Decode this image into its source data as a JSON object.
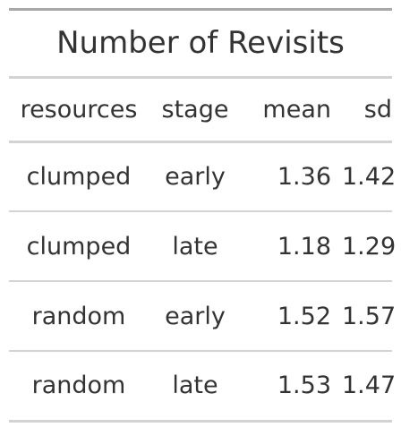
{
  "chart_data": {
    "type": "table",
    "title": "Number of Revisits",
    "columns": [
      "resources",
      "stage",
      "mean",
      "sd"
    ],
    "rows": [
      [
        "clumped",
        "early",
        "1.36",
        "1.42"
      ],
      [
        "clumped",
        "late",
        "1.18",
        "1.29"
      ],
      [
        "random",
        "early",
        "1.52",
        "1.57"
      ],
      [
        "random",
        "late",
        "1.53",
        "1.47"
      ]
    ]
  }
}
